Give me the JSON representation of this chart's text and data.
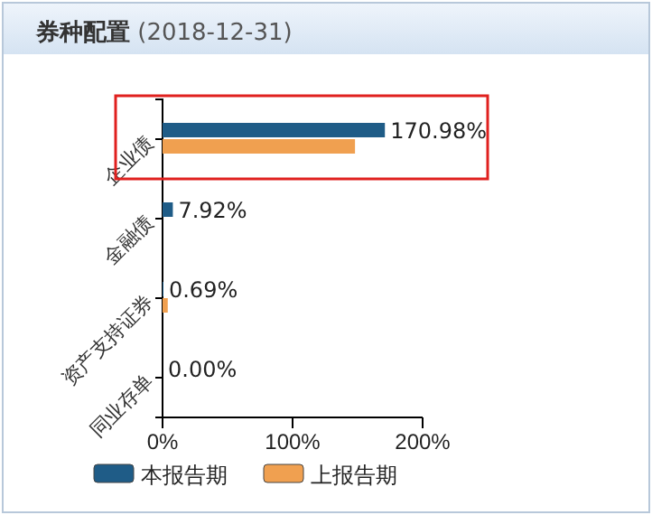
{
  "chart_data": {
    "type": "bar",
    "orientation": "horizontal",
    "title": "券种配置",
    "subtitle": "(2018-12-31)",
    "categories": [
      "企业债",
      "金融债",
      "资产支持证券",
      "同业存单"
    ],
    "series": [
      {
        "name": "本报告期",
        "color": "#1f5c87",
        "values": [
          170.98,
          7.92,
          0.69,
          0.0
        ],
        "value_labels": [
          "170.98%",
          "7.92%",
          "0.69%",
          "0.00%"
        ]
      },
      {
        "name": "上报告期",
        "color": "#f0a050",
        "values": [
          148,
          0,
          4,
          0
        ]
      }
    ],
    "xlim": [
      0,
      200
    ],
    "xticks": [
      {
        "value": 0,
        "label": "0%"
      },
      {
        "value": 100,
        "label": "100%"
      },
      {
        "value": 200,
        "label": "200%"
      }
    ],
    "grid": false,
    "legend": "bottom"
  }
}
